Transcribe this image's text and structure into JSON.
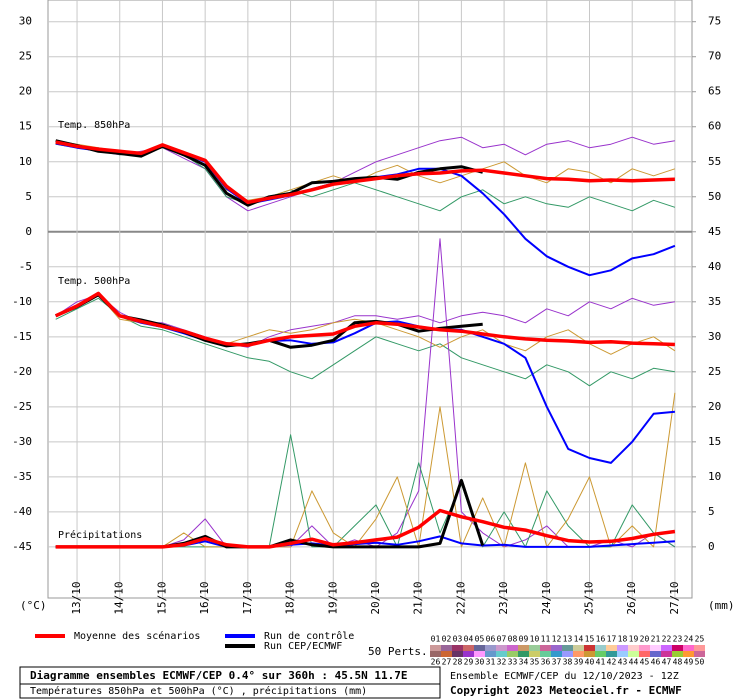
{
  "chart_data": {
    "type": "line",
    "annotations": [
      "Temp. 850hPa",
      "Temp. 500hPa",
      "Précipitations"
    ],
    "ylabel": "(°C)",
    "y2label": "(mm)",
    "x": [
      -0.5,
      0,
      0.5,
      1,
      1.5,
      2,
      2.5,
      3,
      3.5,
      4,
      4.5,
      5,
      5.5,
      6,
      6.5,
      7,
      7.5,
      8,
      8.5,
      9,
      9.5,
      10,
      10.5,
      11,
      11.5,
      12,
      12.5,
      13,
      13.5,
      14
    ],
    "xlim": [
      -0.68,
      14.4
    ],
    "xticks": [
      {
        "value": 0,
        "label": "13/10"
      },
      {
        "value": 1,
        "label": "14/10"
      },
      {
        "value": 2,
        "label": "15/10"
      },
      {
        "value": 3,
        "label": "16/10"
      },
      {
        "value": 4,
        "label": "17/10"
      },
      {
        "value": 5,
        "label": "18/10"
      },
      {
        "value": 6,
        "label": "19/10"
      },
      {
        "value": 7,
        "label": "20/10"
      },
      {
        "value": 8,
        "label": "21/10"
      },
      {
        "value": 9,
        "label": "22/10"
      },
      {
        "value": 10,
        "label": "23/10"
      },
      {
        "value": 11,
        "label": "24/10"
      },
      {
        "value": 12,
        "label": "25/10"
      },
      {
        "value": 13,
        "label": "26/10"
      },
      {
        "value": 14,
        "label": "27/10"
      }
    ],
    "ylim": [
      -52.3,
      33.1
    ],
    "yticks": [
      30,
      25,
      20,
      15,
      10,
      5,
      0,
      -5,
      -10,
      -15,
      -20,
      -25,
      -30,
      -35,
      -40,
      -45
    ],
    "y2lim": [
      -7.3,
      78.1
    ],
    "y2ticks": [
      75,
      70,
      65,
      60,
      55,
      50,
      45,
      40,
      35,
      30,
      25,
      20,
      15,
      10,
      5,
      0
    ],
    "grid": true,
    "series": [
      {
        "color": "#9933cc",
        "linewidth": 1,
        "values": [
          13,
          12,
          11.5,
          11,
          11.5,
          12,
          10.5,
          9,
          5,
          3,
          4,
          5,
          6,
          7,
          8.5,
          10,
          11,
          12,
          13,
          13.5,
          12,
          12.5,
          11,
          12.5,
          13,
          12,
          12.5,
          13.5,
          12.5,
          13
        ]
      },
      {
        "color": "#339966",
        "linewidth": 1,
        "values": [
          12.5,
          12,
          12,
          11,
          11,
          12,
          11,
          9,
          5,
          4,
          5,
          6,
          5,
          6,
          7,
          6,
          5,
          4,
          3,
          5,
          6,
          4,
          5,
          4,
          3.5,
          5,
          4,
          3,
          4.5,
          3.5
        ]
      },
      {
        "color": "#cc9933",
        "linewidth": 1,
        "values": [
          13,
          12.5,
          12,
          11.5,
          11,
          12.5,
          11.5,
          10,
          6,
          4.5,
          5,
          6,
          7,
          8,
          7,
          8.5,
          9.5,
          8,
          7,
          8,
          9,
          10,
          8,
          7,
          9,
          8.5,
          7,
          9,
          8,
          9
        ]
      },
      {
        "color": "#9933cc",
        "linewidth": 1,
        "values": [
          -12,
          -10,
          -9,
          -11.5,
          -13,
          -13,
          -14,
          -15,
          -16,
          -16.5,
          -15,
          -14,
          -13.5,
          -13,
          -12,
          -12,
          -12.5,
          -12,
          -13,
          -12,
          -11.5,
          -12,
          -13,
          -11,
          -12,
          -10,
          -11,
          -9.5,
          -10.5,
          -10
        ]
      },
      {
        "color": "#339966",
        "linewidth": 1,
        "values": [
          -12.5,
          -11,
          -9.5,
          -12,
          -13.5,
          -14,
          -15,
          -16,
          -17,
          -18,
          -18.5,
          -20,
          -21,
          -19,
          -17,
          -15,
          -16,
          -17,
          -16,
          -18,
          -19,
          -20,
          -21,
          -19,
          -20,
          -22,
          -20,
          -21,
          -19.5,
          -20
        ]
      },
      {
        "color": "#cc9933",
        "linewidth": 1,
        "values": [
          -12,
          -10.5,
          -9,
          -12.5,
          -13,
          -13.5,
          -14.5,
          -15.5,
          -16,
          -15,
          -14,
          -14.5,
          -14,
          -13,
          -12.5,
          -13,
          -14,
          -15,
          -16.5,
          -15,
          -14,
          -16,
          -17,
          -15,
          -14,
          -16,
          -17.5,
          -16,
          -15,
          -17
        ]
      },
      {
        "color": "#9933cc",
        "linewidth": 1,
        "axis": "y2",
        "values": [
          0,
          0,
          0,
          0,
          0,
          0,
          1,
          4,
          0,
          0,
          0,
          0,
          3,
          0,
          1,
          0,
          2,
          8,
          44,
          5,
          2,
          0,
          1,
          3,
          0,
          0,
          1,
          0,
          2,
          0
        ]
      },
      {
        "color": "#339966",
        "linewidth": 1,
        "axis": "y2",
        "values": [
          0,
          0,
          0,
          0,
          0,
          0,
          0,
          0,
          0,
          0,
          0,
          16,
          0,
          0,
          3,
          6,
          0,
          12,
          2,
          9,
          0,
          5,
          0,
          8,
          3,
          0,
          0,
          6,
          2,
          0
        ]
      },
      {
        "color": "#cc9933",
        "linewidth": 1,
        "axis": "y2",
        "values": [
          0,
          0,
          0,
          0,
          0,
          0,
          2,
          0,
          0,
          0,
          0,
          0,
          8,
          2,
          0,
          4,
          10,
          0,
          20,
          0,
          7,
          0,
          12,
          0,
          4,
          10,
          0,
          3,
          0,
          22
        ]
      },
      {
        "name": "Run de contrôle",
        "color": "#0000ff",
        "linewidth": 2,
        "values": [
          12.6,
          12,
          11.6,
          11.2,
          11,
          12.3,
          11.2,
          10,
          6.2,
          4,
          4.6,
          5.2,
          6.1,
          6.9,
          7.4,
          7.8,
          8.2,
          9,
          9,
          8,
          5.5,
          2.5,
          -1,
          -3.5,
          -5,
          -6.2,
          -5.5,
          -3.8,
          -3.2,
          -2
        ]
      },
      {
        "color": "#0000ff",
        "linewidth": 2,
        "values": [
          -12,
          -10.5,
          -9,
          -12,
          -13,
          -13.6,
          -14.5,
          -15.5,
          -16.2,
          -16,
          -15.6,
          -15.5,
          -16,
          -15.8,
          -14.5,
          -13,
          -12.8,
          -13.5,
          -14,
          -14,
          -15,
          -16,
          -18,
          -25,
          -31,
          -32.3,
          -33,
          -30,
          -26,
          -25.7
        ]
      },
      {
        "color": "#0000ff",
        "linewidth": 2,
        "axis": "y2",
        "values": [
          0,
          0,
          0,
          0,
          0,
          0,
          0.2,
          0.8,
          0,
          0,
          0,
          0.3,
          0.5,
          0.2,
          0.4,
          0.6,
          0.3,
          0.8,
          1.5,
          0.5,
          0.2,
          0.3,
          0,
          0,
          0,
          0,
          0.2,
          0.4,
          0.6,
          0.8
        ]
      },
      {
        "name": "Run CEP/ECMWF",
        "color": "#000000",
        "linewidth": 3,
        "values": [
          13,
          12.3,
          11.5,
          11.2,
          10.8,
          12.2,
          11,
          9.5,
          5.5,
          3.8,
          5,
          5.5,
          7,
          7.2,
          7.6,
          7.8,
          7.5,
          8.5,
          9,
          9.3,
          8.5,
          null,
          null,
          null,
          null,
          null,
          null,
          null,
          null,
          null
        ]
      },
      {
        "color": "#000000",
        "linewidth": 3,
        "values": [
          -12,
          -10.7,
          -9,
          -12,
          -12.6,
          -13.3,
          -14.3,
          -15.5,
          -16.3,
          -16,
          -15.5,
          -16.5,
          -16.2,
          -15.5,
          -13,
          -12.8,
          -13.2,
          -14.2,
          -13.8,
          -13.5,
          -13.2,
          null,
          null,
          null,
          null,
          null,
          null,
          null,
          null,
          null
        ]
      },
      {
        "color": "#000000",
        "linewidth": 3,
        "axis": "y2",
        "values": [
          0,
          0,
          0,
          0,
          0,
          0,
          0.5,
          1.5,
          0,
          0,
          0,
          1,
          0.3,
          0,
          0,
          0,
          0,
          0,
          0.5,
          9.5,
          0.2,
          null,
          null,
          null,
          null,
          null,
          null,
          null,
          null,
          null
        ]
      },
      {
        "name": "Moyenne des scénarios",
        "color": "#ff0000",
        "linewidth": 3.5,
        "values": [
          12.8,
          12.2,
          11.8,
          11.5,
          11.2,
          12.4,
          11.3,
          10.2,
          6.5,
          4.2,
          4.8,
          5.3,
          6,
          6.8,
          7.2,
          7.6,
          8,
          8.3,
          8.4,
          8.7,
          8.8,
          8.4,
          8,
          7.6,
          7.5,
          7.3,
          7.4,
          7.3,
          7.4,
          7.5
        ]
      },
      {
        "color": "#ff0000",
        "linewidth": 3.5,
        "values": [
          -12,
          -10.6,
          -8.8,
          -12,
          -12.8,
          -13.5,
          -14.2,
          -15.2,
          -16,
          -16.2,
          -15.5,
          -15,
          -14.8,
          -14.6,
          -13.5,
          -13,
          -13.2,
          -13.6,
          -14,
          -14.2,
          -14.6,
          -15,
          -15.3,
          -15.5,
          -15.6,
          -15.8,
          -15.7,
          -15.9,
          -16,
          -16.1
        ]
      },
      {
        "color": "#ff0000",
        "linewidth": 3.5,
        "axis": "y2",
        "values": [
          0,
          0,
          0,
          0,
          0,
          0,
          0.3,
          1.2,
          0.3,
          0,
          0,
          0.5,
          1.1,
          0.3,
          0.6,
          1,
          1.4,
          2.8,
          5.2,
          4.3,
          3.6,
          2.8,
          2.4,
          1.6,
          0.9,
          0.7,
          0.8,
          1.2,
          1.8,
          2.2
        ]
      }
    ],
    "members_label": "50 Perts.",
    "members": [
      {
        "label": "01",
        "color": "#cc9999"
      },
      {
        "label": "02",
        "color": "#996699"
      },
      {
        "label": "03",
        "color": "#993366"
      },
      {
        "label": "04",
        "color": "#cc6666"
      },
      {
        "label": "05",
        "color": "#666699"
      },
      {
        "label": "06",
        "color": "#9999cc"
      },
      {
        "label": "07",
        "color": "#cc99cc"
      },
      {
        "label": "08",
        "color": "#cc66cc"
      },
      {
        "label": "09",
        "color": "#cc9966"
      },
      {
        "label": "10",
        "color": "#99cc99"
      },
      {
        "label": "11",
        "color": "#cc6699"
      },
      {
        "label": "12",
        "color": "#9966cc"
      },
      {
        "label": "13",
        "color": "#669999"
      },
      {
        "label": "14",
        "color": "#cccc99"
      },
      {
        "label": "15",
        "color": "#cc3333"
      },
      {
        "label": "16",
        "color": "#99cccc"
      },
      {
        "label": "17",
        "color": "#ffcc99"
      },
      {
        "label": "18",
        "color": "#cc99ff"
      },
      {
        "label": "19",
        "color": "#ffcccc"
      },
      {
        "label": "20",
        "color": "#ff99cc"
      },
      {
        "label": "21",
        "color": "#ffccff"
      },
      {
        "label": "22",
        "color": "#cc66ff"
      },
      {
        "label": "23",
        "color": "#cc0066"
      },
      {
        "label": "24",
        "color": "#ff66cc"
      },
      {
        "label": "25",
        "color": "#ff9999"
      },
      {
        "label": "26",
        "color": "#996666"
      },
      {
        "label": "27",
        "color": "#cc6633"
      },
      {
        "label": "28",
        "color": "#663366"
      },
      {
        "label": "29",
        "color": "#9933cc"
      },
      {
        "label": "30",
        "color": "#ff99ff"
      },
      {
        "label": "31",
        "color": "#6699cc"
      },
      {
        "label": "32",
        "color": "#66cccc"
      },
      {
        "label": "33",
        "color": "#99cc66"
      },
      {
        "label": "34",
        "color": "#339966"
      },
      {
        "label": "35",
        "color": "#cccc66"
      },
      {
        "label": "36",
        "color": "#66cc99"
      },
      {
        "label": "37",
        "color": "#3399cc"
      },
      {
        "label": "38",
        "color": "#9999ff"
      },
      {
        "label": "39",
        "color": "#ff9966"
      },
      {
        "label": "40",
        "color": "#cc9933"
      },
      {
        "label": "41",
        "color": "#66cc66"
      },
      {
        "label": "42",
        "color": "#339999"
      },
      {
        "label": "43",
        "color": "#99ccff"
      },
      {
        "label": "44",
        "color": "#ccff99"
      },
      {
        "label": "45",
        "color": "#ff6666"
      },
      {
        "label": "46",
        "color": "#6666cc"
      },
      {
        "label": "47",
        "color": "#cc3399"
      },
      {
        "label": "48",
        "color": "#99cc33"
      },
      {
        "label": "49",
        "color": "#ff9933"
      },
      {
        "label": "50",
        "color": "#cc6699"
      }
    ],
    "info_title": "Diagramme ensembles ECMWF/CEP 0.4° sur 360h : 45.5N 11.7E",
    "info_subtitle": "Températures 850hPa et 500hPa (°C) , précipitations (mm)",
    "run_info": "Ensemble ECMWF/CEP du 12/10/2023 - 12Z",
    "copyright": "Copyright 2023 Meteociel.fr - ECMWF"
  }
}
